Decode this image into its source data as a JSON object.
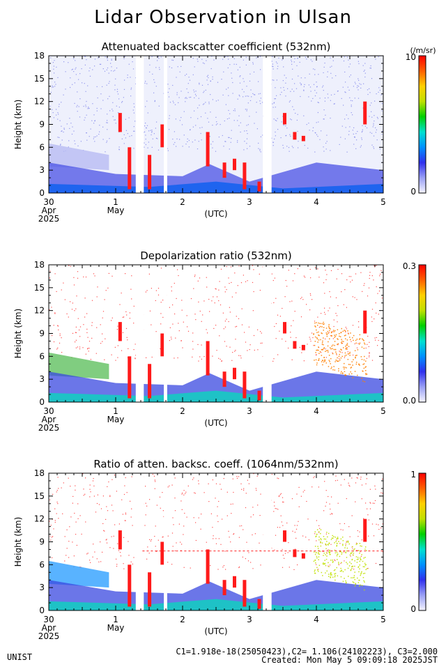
{
  "title": "Lidar Observation in Ulsan",
  "colors": {
    "scale": [
      "#f4f4ff",
      "#9aa0f5",
      "#3030ee",
      "#0090ff",
      "#00e0d0",
      "#00d000",
      "#c0e000",
      "#ffd000",
      "#ff6000",
      "#ff0000"
    ]
  },
  "chart_data": [
    {
      "type": "heatmap",
      "title": "Attenuated backscatter coefficient (532nm)",
      "ylabel": "Height (km)",
      "xlabel": "(UTC)",
      "ylim": [
        0,
        18
      ],
      "yticks": [
        "0",
        "3",
        "6",
        "9",
        "12",
        "15",
        "18"
      ],
      "xticks": [
        {
          "day": "30",
          "month": "Apr",
          "year": "2025"
        },
        {
          "day": "1",
          "month": "May"
        },
        {
          "day": "2"
        },
        {
          "day": "3"
        },
        {
          "day": "4"
        },
        {
          "day": "5"
        }
      ],
      "colorbar": {
        "max_label": "10",
        "min_label": "0",
        "unit": "(/m/sr)"
      }
    },
    {
      "type": "heatmap",
      "title": "Depolarization ratio (532nm)",
      "ylabel": "Height (km)",
      "xlabel": "(UTC)",
      "ylim": [
        0,
        18
      ],
      "yticks": [
        "0",
        "3",
        "6",
        "9",
        "12",
        "15",
        "18"
      ],
      "xticks": [
        {
          "day": "30",
          "month": "Apr",
          "year": "2025"
        },
        {
          "day": "1",
          "month": "May"
        },
        {
          "day": "2"
        },
        {
          "day": "3"
        },
        {
          "day": "4"
        },
        {
          "day": "5"
        }
      ],
      "colorbar": {
        "max_label": "0.3",
        "min_label": "0.0"
      }
    },
    {
      "type": "heatmap",
      "title": "Ratio of atten. backsc. coeff. (1064nm/532nm)",
      "ylabel": "Height (km)",
      "xlabel": "(UTC)",
      "ylim": [
        0,
        18
      ],
      "yticks": [
        "0",
        "3",
        "6",
        "9",
        "12",
        "15",
        "18"
      ],
      "xticks": [
        {
          "day": "30",
          "month": "Apr",
          "year": "2025"
        },
        {
          "day": "1",
          "month": "May"
        },
        {
          "day": "2"
        },
        {
          "day": "3"
        },
        {
          "day": "4"
        },
        {
          "day": "5"
        }
      ],
      "colorbar": {
        "max_label": "1",
        "min_label": "0"
      }
    }
  ],
  "footer": {
    "org": "UNIST",
    "constants": "C1=1.918e-18(25050423),C2= 1.106(24102223), C3=2.000",
    "created": "Created: Mon May  5 09:09:18 2025JST"
  }
}
